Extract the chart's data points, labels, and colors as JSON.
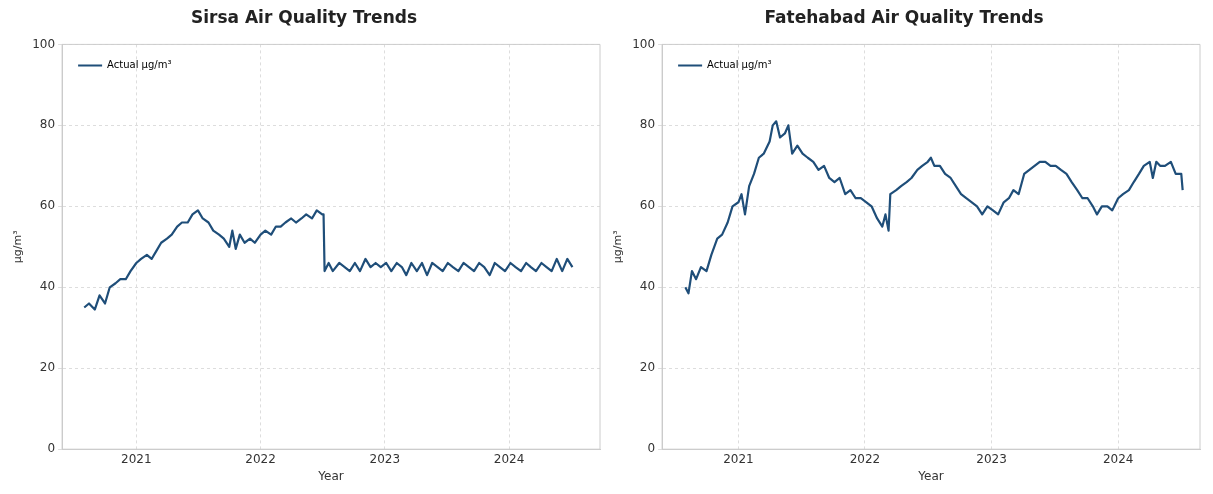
{
  "chart_data": [
    {
      "type": "line",
      "title": "Sirsa Air Quality Trends",
      "xlabel": "Year",
      "ylabel": "µg/m³",
      "xlim": [
        "2020-05-28",
        "2024-09-24"
      ],
      "xticks": [
        "2021",
        "2022",
        "2023",
        "2024"
      ],
      "ylim": [
        0,
        100
      ],
      "yticks": [
        0,
        20,
        40,
        60,
        80,
        100
      ],
      "grid": true,
      "legend": "top left",
      "line_style": "solid",
      "marker": "none",
      "series": [
        {
          "name": "Actual µg/m³",
          "color": "#1f4e79",
          "x": [
            "2020-08-01",
            "2020-08-15",
            "2020-09-01",
            "2020-09-15",
            "2020-10-01",
            "2020-10-15",
            "2020-11-01",
            "2020-11-15",
            "2020-12-01",
            "2020-12-15",
            "2021-01-01",
            "2021-01-15",
            "2021-02-01",
            "2021-02-15",
            "2021-03-01",
            "2021-03-15",
            "2021-04-01",
            "2021-04-15",
            "2021-05-01",
            "2021-05-15",
            "2021-06-01",
            "2021-06-15",
            "2021-07-01",
            "2021-07-15",
            "2021-08-01",
            "2021-08-15",
            "2021-09-01",
            "2021-09-15",
            "2021-10-01",
            "2021-10-10",
            "2021-10-20",
            "2021-11-01",
            "2021-11-15",
            "2021-12-01",
            "2021-12-15",
            "2022-01-01",
            "2022-01-15",
            "2022-02-01",
            "2022-02-15",
            "2022-03-01",
            "2022-03-15",
            "2022-04-01",
            "2022-04-15",
            "2022-05-01",
            "2022-05-15",
            "2022-06-01",
            "2022-06-15",
            "2022-07-01",
            "2022-07-05",
            "2022-07-08",
            "2022-07-20",
            "2022-08-01",
            "2022-08-20",
            "2022-09-05",
            "2022-09-20",
            "2022-10-05",
            "2022-10-20",
            "2022-11-05",
            "2022-11-20",
            "2022-12-05",
            "2022-12-20",
            "2023-01-05",
            "2023-01-20",
            "2023-02-05",
            "2023-02-20",
            "2023-03-05",
            "2023-03-20",
            "2023-04-05",
            "2023-04-20",
            "2023-05-05",
            "2023-05-20",
            "2023-06-05",
            "2023-06-20",
            "2023-07-05",
            "2023-07-20",
            "2023-08-05",
            "2023-08-20",
            "2023-09-05",
            "2023-09-20",
            "2023-10-05",
            "2023-10-20",
            "2023-11-05",
            "2023-11-20",
            "2023-12-05",
            "2023-12-20",
            "2024-01-05",
            "2024-01-20",
            "2024-02-05",
            "2024-02-20",
            "2024-03-05",
            "2024-03-20",
            "2024-04-05",
            "2024-04-20",
            "2024-05-05",
            "2024-05-20",
            "2024-06-05",
            "2024-06-20",
            "2024-07-05"
          ],
          "values": [
            35,
            36,
            34.5,
            38,
            36,
            40,
            41,
            42,
            42,
            44,
            46,
            47,
            48,
            47,
            49,
            51,
            52,
            53,
            55,
            56,
            56,
            58,
            59,
            57,
            56,
            54,
            53,
            52,
            50,
            54,
            49.5,
            53,
            51,
            52,
            51,
            53,
            54,
            53,
            55,
            55,
            56,
            57,
            56,
            57,
            58,
            57,
            59,
            58,
            58,
            44,
            46,
            44,
            46,
            45,
            44,
            46,
            44,
            47,
            45,
            46,
            45,
            46,
            44,
            46,
            45,
            43,
            46,
            44,
            46,
            43,
            46,
            45,
            44,
            46,
            45,
            44,
            46,
            45,
            44,
            46,
            45,
            43,
            46,
            45,
            44,
            46,
            45,
            44,
            46,
            45,
            44,
            46,
            45,
            44,
            47,
            44,
            47,
            45
          ]
        }
      ]
    },
    {
      "type": "line",
      "title": "Fatehabad Air Quality Trends",
      "xlabel": "Year",
      "ylabel": "µg/m³",
      "xlim": [
        "2020-05-26",
        "2024-08-24"
      ],
      "xticks": [
        "2021",
        "2022",
        "2023",
        "2024"
      ],
      "ylim": [
        0,
        100
      ],
      "yticks": [
        0,
        20,
        40,
        60,
        80,
        100
      ],
      "grid": true,
      "legend": "top left",
      "line_style": "solid",
      "marker": "none",
      "series": [
        {
          "name": "Actual µg/m³",
          "color": "#1f4e79",
          "x": [
            "2020-08-01",
            "2020-08-10",
            "2020-08-20",
            "2020-09-01",
            "2020-09-15",
            "2020-10-01",
            "2020-10-15",
            "2020-11-01",
            "2020-11-15",
            "2020-12-01",
            "2020-12-15",
            "2021-01-01",
            "2021-01-10",
            "2021-01-20",
            "2021-02-01",
            "2021-02-15",
            "2021-03-01",
            "2021-03-15",
            "2021-04-01",
            "2021-04-10",
            "2021-04-20",
            "2021-05-01",
            "2021-05-15",
            "2021-05-25",
            "2021-06-05",
            "2021-06-20",
            "2021-07-05",
            "2021-07-20",
            "2021-08-05",
            "2021-08-20",
            "2021-09-05",
            "2021-09-20",
            "2021-10-05",
            "2021-10-20",
            "2021-11-05",
            "2021-11-20",
            "2021-12-05",
            "2021-12-20",
            "2022-01-05",
            "2022-01-20",
            "2022-02-05",
            "2022-02-20",
            "2022-03-01",
            "2022-03-10",
            "2022-03-15",
            "2022-04-01",
            "2022-04-15",
            "2022-05-01",
            "2022-05-15",
            "2022-06-01",
            "2022-06-15",
            "2022-07-01",
            "2022-07-10",
            "2022-07-20",
            "2022-08-05",
            "2022-08-20",
            "2022-09-05",
            "2022-09-20",
            "2022-10-05",
            "2022-10-20",
            "2022-11-05",
            "2022-11-20",
            "2022-12-05",
            "2022-12-20",
            "2023-01-05",
            "2023-01-20",
            "2023-02-05",
            "2023-02-20",
            "2023-03-05",
            "2023-03-20",
            "2023-04-05",
            "2023-04-20",
            "2023-05-05",
            "2023-05-20",
            "2023-06-05",
            "2023-06-20",
            "2023-07-05",
            "2023-07-20",
            "2023-08-05",
            "2023-08-20",
            "2023-09-05",
            "2023-09-20",
            "2023-10-05",
            "2023-10-20",
            "2023-11-01",
            "2023-11-15",
            "2023-12-01",
            "2023-12-15",
            "2024-01-01",
            "2024-01-15",
            "2024-02-01",
            "2024-02-15",
            "2024-03-01",
            "2024-03-15",
            "2024-04-01",
            "2024-04-10",
            "2024-04-20",
            "2024-05-01",
            "2024-05-15",
            "2024-06-01",
            "2024-06-15",
            "2024-07-01",
            "2024-07-05"
          ],
          "values": [
            40,
            38.5,
            44,
            42,
            45,
            44,
            48,
            52,
            53,
            56,
            60,
            61,
            63,
            58,
            65,
            68,
            72,
            73,
            76,
            80,
            81,
            77,
            78,
            80,
            73,
            75,
            73,
            72,
            71,
            69,
            70,
            67,
            66,
            67,
            63,
            64,
            62,
            62,
            61,
            60,
            57,
            55,
            58,
            54,
            63,
            64,
            65,
            66,
            67,
            69,
            70,
            71,
            72,
            70,
            70,
            68,
            67,
            65,
            63,
            62,
            61,
            60,
            58,
            60,
            59,
            58,
            61,
            62,
            64,
            63,
            68,
            69,
            70,
            71,
            71,
            70,
            70,
            69,
            68,
            66,
            64,
            62,
            62,
            60,
            58,
            60,
            60,
            59,
            62,
            63,
            64,
            66,
            68,
            70,
            71,
            67,
            71,
            70,
            70,
            71,
            68,
            68,
            64
          ]
        }
      ]
    }
  ]
}
